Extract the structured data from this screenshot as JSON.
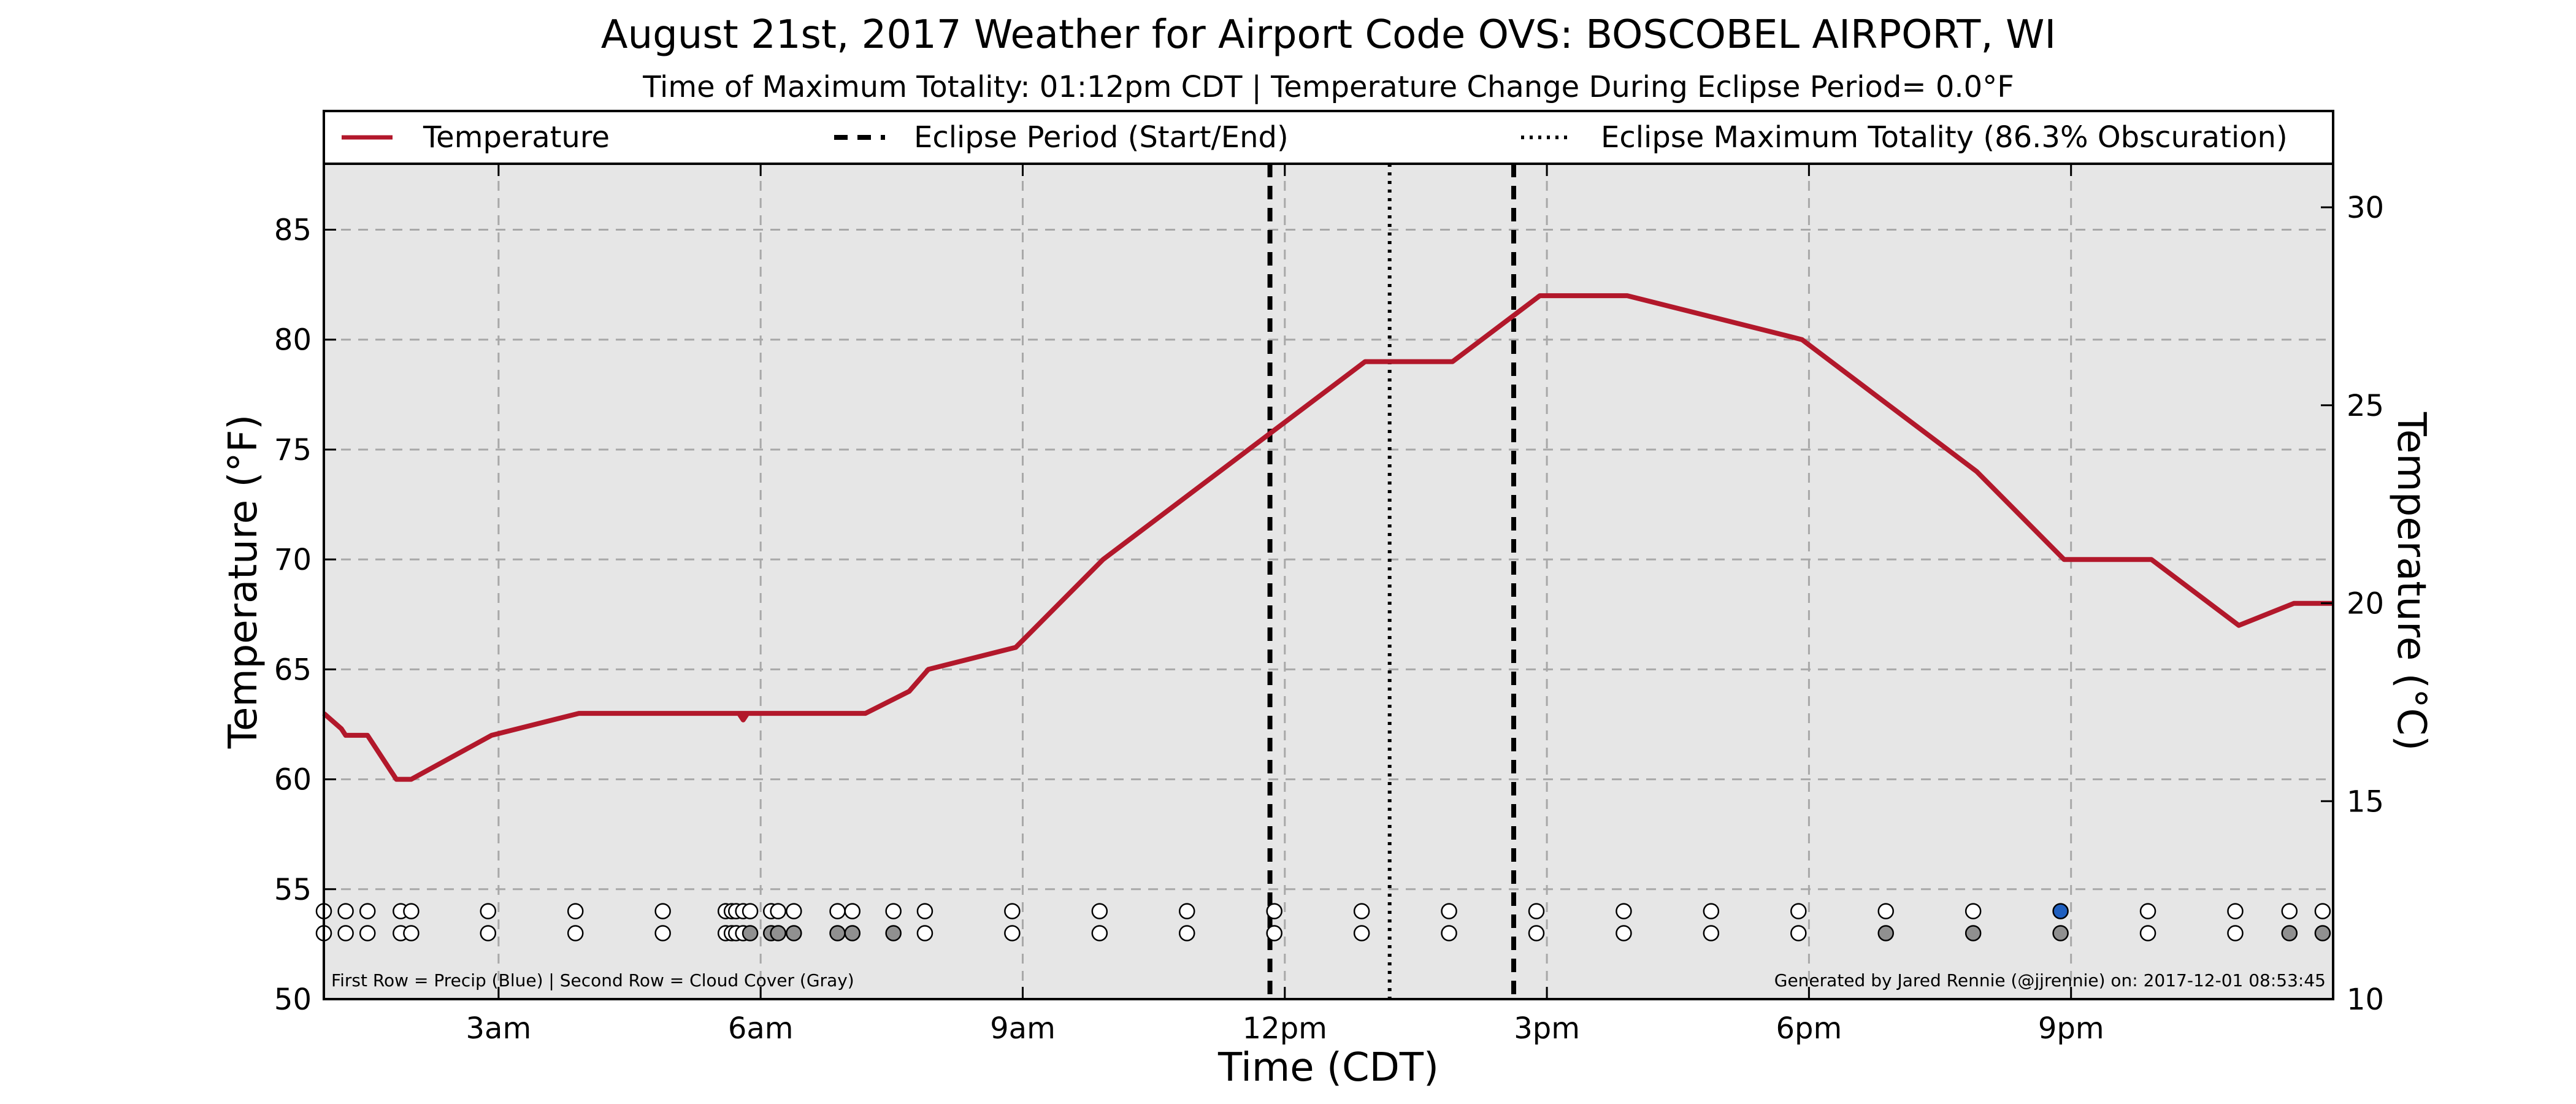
{
  "chart_data": {
    "type": "line",
    "title": "August 21st, 2017 Weather for Airport Code OVS: BOSCOBEL AIRPORT, WI",
    "subtitle": "Time of Maximum Totality: 01:12pm CDT | Temperature Change During Eclipse Period= 0.0°F",
    "xlabel": "Time (CDT)",
    "ylabel": "Temperature (°F)",
    "ylabel_right": "Temperature (°C)",
    "xlim_hours": [
      1.0,
      24.0
    ],
    "ylim": [
      50,
      88
    ],
    "ylim_right_celsius": [
      10.0,
      31.1
    ],
    "x_ticks": [
      {
        "hour": 3,
        "label": "3am"
      },
      {
        "hour": 6,
        "label": "6am"
      },
      {
        "hour": 9,
        "label": "9am"
      },
      {
        "hour": 12,
        "label": "12pm"
      },
      {
        "hour": 15,
        "label": "3pm"
      },
      {
        "hour": 18,
        "label": "6pm"
      },
      {
        "hour": 21,
        "label": "9pm"
      }
    ],
    "y_ticks": [
      50,
      55,
      60,
      65,
      70,
      75,
      80,
      85
    ],
    "y_ticks_right": [
      10,
      15,
      20,
      25,
      30
    ],
    "grid": true,
    "legend_position": "top",
    "legend": [
      {
        "label": "Temperature",
        "style": "solid",
        "color": "#b2182b"
      },
      {
        "label": "Eclipse Period (Start/End)",
        "style": "dashed",
        "color": "#000000"
      },
      {
        "label": "Eclipse Maximum Totality (86.3% Obscuration)",
        "style": "dotted",
        "color": "#000000"
      }
    ],
    "series": [
      {
        "name": "Temperature",
        "color": "#b2182b",
        "points": [
          [
            1.0,
            63
          ],
          [
            1.2,
            62.3
          ],
          [
            1.25,
            62
          ],
          [
            1.5,
            62
          ],
          [
            1.83,
            60
          ],
          [
            2.0,
            60
          ],
          [
            2.92,
            62
          ],
          [
            3.92,
            63
          ],
          [
            4.92,
            63
          ],
          [
            5.92,
            63
          ],
          [
            5.75,
            63
          ],
          [
            5.8,
            62.7
          ],
          [
            5.85,
            63
          ],
          [
            6.92,
            63
          ],
          [
            7.2,
            63
          ],
          [
            7.7,
            64
          ],
          [
            7.92,
            65
          ],
          [
            8.92,
            66
          ],
          [
            9.92,
            70
          ],
          [
            10.92,
            73
          ],
          [
            11.92,
            76
          ],
          [
            12.92,
            79
          ],
          [
            13.92,
            79
          ],
          [
            14.92,
            82
          ],
          [
            15.92,
            82
          ],
          [
            16.92,
            81
          ],
          [
            17.92,
            80
          ],
          [
            18.92,
            77
          ],
          [
            19.92,
            74
          ],
          [
            20.92,
            70
          ],
          [
            21.92,
            70
          ],
          [
            22.92,
            67
          ],
          [
            23.55,
            68
          ],
          [
            24.0,
            68
          ]
        ]
      }
    ],
    "eclipse_period_hours": [
      11.83,
      14.62
    ],
    "eclipse_max_hour": 13.2,
    "precip_row": [
      {
        "h": 1.0,
        "c": "#ffffff"
      },
      {
        "h": 1.25,
        "c": "#ffffff"
      },
      {
        "h": 1.5,
        "c": "#ffffff"
      },
      {
        "h": 1.88,
        "c": "#ffffff"
      },
      {
        "h": 2.0,
        "c": "#ffffff"
      },
      {
        "h": 2.88,
        "c": "#ffffff"
      },
      {
        "h": 3.88,
        "c": "#ffffff"
      },
      {
        "h": 4.88,
        "c": "#ffffff"
      },
      {
        "h": 5.6,
        "c": "#ffffff"
      },
      {
        "h": 5.67,
        "c": "#ffffff"
      },
      {
        "h": 5.72,
        "c": "#ffffff"
      },
      {
        "h": 5.8,
        "c": "#ffffff"
      },
      {
        "h": 5.88,
        "c": "#ffffff"
      },
      {
        "h": 6.12,
        "c": "#ffffff"
      },
      {
        "h": 6.2,
        "c": "#ffffff"
      },
      {
        "h": 6.38,
        "c": "#ffffff"
      },
      {
        "h": 6.88,
        "c": "#ffffff"
      },
      {
        "h": 7.05,
        "c": "#ffffff"
      },
      {
        "h": 7.52,
        "c": "#ffffff"
      },
      {
        "h": 7.88,
        "c": "#ffffff"
      },
      {
        "h": 8.88,
        "c": "#ffffff"
      },
      {
        "h": 9.88,
        "c": "#ffffff"
      },
      {
        "h": 10.88,
        "c": "#ffffff"
      },
      {
        "h": 11.88,
        "c": "#ffffff"
      },
      {
        "h": 12.88,
        "c": "#ffffff"
      },
      {
        "h": 13.88,
        "c": "#ffffff"
      },
      {
        "h": 14.88,
        "c": "#ffffff"
      },
      {
        "h": 15.88,
        "c": "#ffffff"
      },
      {
        "h": 16.88,
        "c": "#ffffff"
      },
      {
        "h": 17.88,
        "c": "#ffffff"
      },
      {
        "h": 18.88,
        "c": "#ffffff"
      },
      {
        "h": 19.88,
        "c": "#ffffff"
      },
      {
        "h": 20.88,
        "c": "#1f5fbf"
      },
      {
        "h": 21.88,
        "c": "#ffffff"
      },
      {
        "h": 22.88,
        "c": "#ffffff"
      },
      {
        "h": 23.5,
        "c": "#ffffff"
      },
      {
        "h": 23.88,
        "c": "#ffffff"
      }
    ],
    "cloud_row": [
      {
        "h": 1.0,
        "c": "#ffffff"
      },
      {
        "h": 1.25,
        "c": "#ffffff"
      },
      {
        "h": 1.5,
        "c": "#ffffff"
      },
      {
        "h": 1.88,
        "c": "#ffffff"
      },
      {
        "h": 2.0,
        "c": "#ffffff"
      },
      {
        "h": 2.88,
        "c": "#ffffff"
      },
      {
        "h": 3.88,
        "c": "#ffffff"
      },
      {
        "h": 4.88,
        "c": "#ffffff"
      },
      {
        "h": 5.6,
        "c": "#ffffff"
      },
      {
        "h": 5.67,
        "c": "#ffffff"
      },
      {
        "h": 5.72,
        "c": "#ffffff"
      },
      {
        "h": 5.8,
        "c": "#ffffff"
      },
      {
        "h": 5.88,
        "c": "#909090"
      },
      {
        "h": 6.12,
        "c": "#909090"
      },
      {
        "h": 6.2,
        "c": "#909090"
      },
      {
        "h": 6.38,
        "c": "#909090"
      },
      {
        "h": 6.88,
        "c": "#909090"
      },
      {
        "h": 7.05,
        "c": "#909090"
      },
      {
        "h": 7.52,
        "c": "#909090"
      },
      {
        "h": 7.88,
        "c": "#ffffff"
      },
      {
        "h": 8.88,
        "c": "#ffffff"
      },
      {
        "h": 9.88,
        "c": "#ffffff"
      },
      {
        "h": 10.88,
        "c": "#ffffff"
      },
      {
        "h": 11.88,
        "c": "#ffffff"
      },
      {
        "h": 12.88,
        "c": "#ffffff"
      },
      {
        "h": 13.88,
        "c": "#ffffff"
      },
      {
        "h": 14.88,
        "c": "#ffffff"
      },
      {
        "h": 15.88,
        "c": "#ffffff"
      },
      {
        "h": 16.88,
        "c": "#ffffff"
      },
      {
        "h": 17.88,
        "c": "#ffffff"
      },
      {
        "h": 18.88,
        "c": "#909090"
      },
      {
        "h": 19.88,
        "c": "#909090"
      },
      {
        "h": 20.88,
        "c": "#909090"
      },
      {
        "h": 21.88,
        "c": "#ffffff"
      },
      {
        "h": 22.88,
        "c": "#ffffff"
      },
      {
        "h": 23.5,
        "c": "#909090"
      },
      {
        "h": 23.88,
        "c": "#909090"
      }
    ],
    "footnote_left": "First Row = Precip (Blue) | Second Row = Cloud Cover (Gray)",
    "footnote_right": "Generated by Jared Rennie (@jjrennie) on: 2017-12-01 08:53:45"
  }
}
